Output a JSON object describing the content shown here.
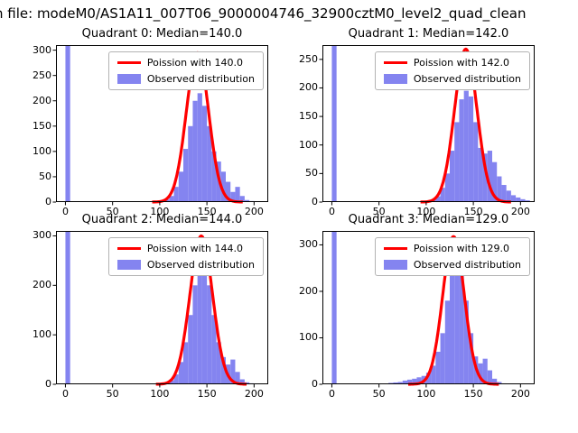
{
  "suptitle": "n file: modeM0/AS1A11_007T06_9000004746_32900cztM0_level2_quad_clean",
  "colors": {
    "histogram": "#8484f0",
    "curve": "#ff0000",
    "axis": "#000000"
  },
  "chart_data": [
    {
      "type": "bar",
      "title": "Quadrant 0: Median=140.0",
      "median": 140.0,
      "legend_poisson": "Poission with 140.0",
      "legend_observed": "Observed distribution",
      "legend_position": "upper right",
      "bin_start": 0,
      "bin_width": 5,
      "bins": [
        310,
        0,
        0,
        0,
        0,
        0,
        0,
        0,
        0,
        0,
        0,
        0,
        0,
        0,
        0,
        0,
        0,
        0,
        0,
        0,
        2,
        5,
        12,
        30,
        60,
        105,
        150,
        200,
        215,
        190,
        150,
        100,
        80,
        60,
        40,
        20,
        30,
        12,
        4,
        2,
        1
      ],
      "curve": {
        "shape": "poisson-fit",
        "mean": 140,
        "sigma": 11.8,
        "amp": 295
      },
      "xlim": [
        -10,
        215
      ],
      "ylim": [
        0,
        310
      ],
      "xticks": [
        0,
        50,
        100,
        150,
        200
      ],
      "yticks": [
        0,
        50,
        100,
        150,
        200,
        250,
        300
      ]
    },
    {
      "type": "bar",
      "title": "Quadrant 1: Median=142.0",
      "median": 142.0,
      "legend_poisson": "Poission with 142.0",
      "legend_observed": "Observed distribution",
      "legend_position": "upper right",
      "bin_start": 0,
      "bin_width": 5,
      "bins": [
        275,
        0,
        0,
        0,
        0,
        0,
        0,
        0,
        0,
        0,
        0,
        0,
        0,
        0,
        0,
        0,
        0,
        0,
        0,
        0,
        2,
        4,
        10,
        25,
        50,
        90,
        140,
        180,
        195,
        185,
        140,
        95,
        85,
        90,
        70,
        45,
        30,
        20,
        12,
        8,
        5,
        3
      ],
      "curve": {
        "shape": "poisson-fit",
        "mean": 142,
        "sigma": 11.9,
        "amp": 268
      },
      "xlim": [
        -10,
        215
      ],
      "ylim": [
        0,
        275
      ],
      "xticks": [
        0,
        50,
        100,
        150,
        200
      ],
      "yticks": [
        0,
        50,
        100,
        150,
        200,
        250
      ]
    },
    {
      "type": "bar",
      "title": "Quadrant 2: Median=144.0",
      "median": 144.0,
      "legend_poisson": "Poission with 144.0",
      "legend_observed": "Observed distribution",
      "legend_position": "upper right",
      "bin_start": 0,
      "bin_width": 5,
      "bins": [
        310,
        0,
        0,
        0,
        0,
        0,
        0,
        0,
        0,
        0,
        0,
        0,
        0,
        0,
        0,
        0,
        0,
        0,
        0,
        0,
        1,
        3,
        8,
        20,
        45,
        85,
        140,
        200,
        240,
        245,
        200,
        140,
        85,
        55,
        40,
        50,
        25,
        10,
        4,
        2,
        1
      ],
      "curve": {
        "shape": "poisson-fit",
        "mean": 144,
        "sigma": 12.0,
        "amp": 300
      },
      "xlim": [
        -10,
        215
      ],
      "ylim": [
        0,
        310
      ],
      "xticks": [
        0,
        50,
        100,
        150,
        200
      ],
      "yticks": [
        0,
        100,
        200,
        300
      ]
    },
    {
      "type": "bar",
      "title": "Quadrant 3: Median=129.0",
      "median": 129.0,
      "legend_poisson": "Poission with 129.0",
      "legend_observed": "Observed distribution",
      "legend_position": "upper right",
      "bin_start": 0,
      "bin_width": 5,
      "bins": [
        330,
        0,
        0,
        0,
        0,
        0,
        0,
        0,
        0,
        0,
        0,
        0,
        3,
        4,
        5,
        8,
        10,
        12,
        15,
        18,
        25,
        40,
        70,
        110,
        180,
        240,
        265,
        240,
        180,
        110,
        60,
        45,
        55,
        30,
        12,
        5,
        2,
        1
      ],
      "curve": {
        "shape": "poisson-fit",
        "mean": 129,
        "sigma": 11.4,
        "amp": 318
      },
      "xlim": [
        -10,
        215
      ],
      "ylim": [
        0,
        330
      ],
      "xticks": [
        0,
        50,
        100,
        150,
        200
      ],
      "yticks": [
        0,
        100,
        200,
        300
      ]
    }
  ]
}
